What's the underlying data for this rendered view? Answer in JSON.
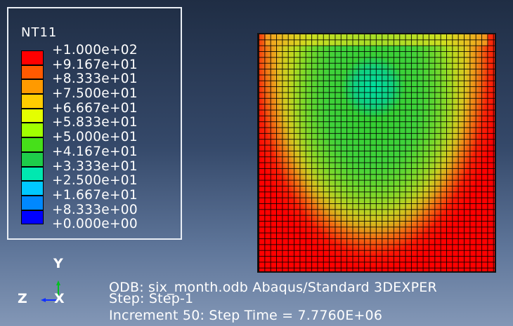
{
  "legend": {
    "variable": "NT11",
    "levels": [
      {
        "label": "+1.000e+02",
        "color": "#ff0000"
      },
      {
        "label": "+9.167e+01",
        "color": "#ff5a00"
      },
      {
        "label": "+8.333e+01",
        "color": "#ff9a00"
      },
      {
        "label": "+7.500e+01",
        "color": "#ffcc00"
      },
      {
        "label": "+6.667e+01",
        "color": "#e4ff00"
      },
      {
        "label": "+5.833e+01",
        "color": "#a0ff00"
      },
      {
        "label": "+5.000e+01",
        "color": "#46e01a"
      },
      {
        "label": "+4.167e+01",
        "color": "#1ecc4a"
      },
      {
        "label": "+3.333e+01",
        "color": "#00e8b0"
      },
      {
        "label": "+2.500e+01",
        "color": "#00c8ff"
      },
      {
        "label": "+1.667e+01",
        "color": "#0088ff"
      },
      {
        "label": "+8.333e+00",
        "color": "#0040ff"
      },
      {
        "label": "+0.000e+00",
        "color": "#0000ff"
      }
    ]
  },
  "triad": {
    "y": "Y",
    "z": "Z",
    "x": "X"
  },
  "info": {
    "line1": "ODB: six_month.odb    Abaqus/Standard 3DEXPER",
    "line2": "Step: Step-1",
    "line3": "Increment      50: Step Time =    7.7760E+06"
  }
}
